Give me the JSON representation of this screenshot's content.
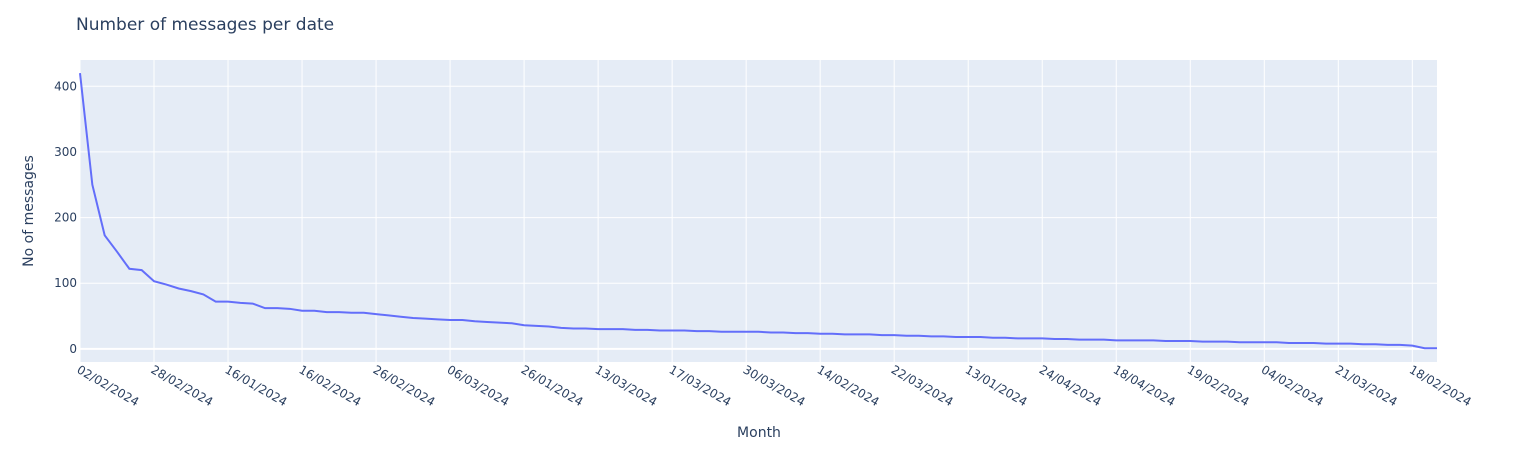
{
  "chart_data": {
    "type": "line",
    "title": "Number of messages per date",
    "xlabel": "Month",
    "ylabel": "No of messages",
    "ylim": [
      -20,
      440
    ],
    "yticks": [
      0,
      100,
      200,
      300,
      400
    ],
    "grid": true,
    "colors": {
      "plot_bg": "#e5ecf6",
      "grid": "#ffffff",
      "line": "#636efa",
      "text": "#2a3f5f"
    },
    "xtick_labels": [
      "02/02/2024",
      "28/02/2024",
      "16/01/2024",
      "16/02/2024",
      "26/02/2024",
      "06/03/2024",
      "26/01/2024",
      "13/03/2024",
      "17/03/2024",
      "30/03/2024",
      "14/02/2024",
      "22/03/2024",
      "13/01/2024",
      "24/04/2024",
      "18/04/2024",
      "19/02/2024",
      "04/02/2024",
      "21/03/2024",
      "18/02/2024"
    ],
    "tick_every": 6,
    "series": [
      {
        "values": [
          420,
          250,
          173,
          148,
          122,
          120,
          103,
          98,
          92,
          88,
          83,
          72,
          72,
          70,
          69,
          62,
          62,
          61,
          58,
          58,
          56,
          56,
          55,
          55,
          53,
          51,
          49,
          47,
          46,
          45,
          44,
          44,
          42,
          41,
          40,
          39,
          36,
          35,
          34,
          32,
          31,
          31,
          30,
          30,
          30,
          29,
          29,
          28,
          28,
          28,
          27,
          27,
          26,
          26,
          26,
          26,
          25,
          25,
          24,
          24,
          23,
          23,
          22,
          22,
          22,
          21,
          21,
          20,
          20,
          19,
          19,
          18,
          18,
          18,
          17,
          17,
          16,
          16,
          16,
          15,
          15,
          14,
          14,
          14,
          13,
          13,
          13,
          13,
          12,
          12,
          12,
          11,
          11,
          11,
          10,
          10,
          10,
          10,
          9,
          9,
          9,
          8,
          8,
          8,
          7,
          7,
          6,
          6,
          5,
          1,
          1
        ]
      }
    ]
  }
}
